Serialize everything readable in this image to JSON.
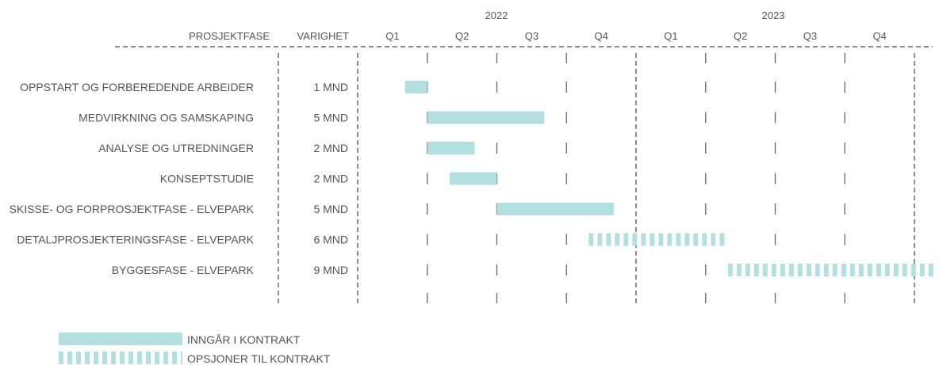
{
  "chart_data": {
    "type": "gantt",
    "headers": {
      "phase": "PROSJEKTFASE",
      "duration": "VARIGHET"
    },
    "years": [
      {
        "label": "2022",
        "start": 2022.0
      },
      {
        "label": "2023",
        "start": 2023.0
      }
    ],
    "quarters": [
      "Q1",
      "Q2",
      "Q3",
      "Q4",
      "Q1",
      "Q2",
      "Q3",
      "Q4"
    ],
    "x_range": [
      2022.0,
      2024.0
    ],
    "x_unit": "year",
    "tasks": [
      {
        "name": "OPPSTART OG FORBEREDENDE ARBEIDER",
        "duration": "1 MND",
        "start": 2022.17,
        "end": 2022.25,
        "type": "contract"
      },
      {
        "name": "MEDVIRKNING OG SAMSKAPING",
        "duration": "5 MND",
        "start": 2022.25,
        "end": 2022.67,
        "type": "contract"
      },
      {
        "name": "ANALYSE OG UTREDNINGER",
        "duration": "2 MND",
        "start": 2022.25,
        "end": 2022.42,
        "type": "contract"
      },
      {
        "name": "KONSEPTSTUDIE",
        "duration": "2 MND",
        "start": 2022.33,
        "end": 2022.5,
        "type": "contract"
      },
      {
        "name": "SKISSE- OG FORPROSJEKTFASE - ELVEPARK",
        "duration": "5 MND",
        "start": 2022.5,
        "end": 2022.92,
        "type": "contract"
      },
      {
        "name": "DETALJPROSJEKTERINGSFASE - ELVEPARK",
        "duration": "6 MND",
        "start": 2022.83,
        "end": 2023.33,
        "type": "option"
      },
      {
        "name": "BYGGESFASE - ELVEPARK",
        "duration": "9 MND",
        "start": 2023.33,
        "end": 2024.08,
        "type": "option"
      }
    ],
    "legend": [
      {
        "type": "contract",
        "label": "INNGÅR I KONTRAKT"
      },
      {
        "type": "option",
        "label": "OPSJONER TIL KONTRAKT"
      }
    ]
  },
  "colors": {
    "bar": "#b2dfe0",
    "line": "#666666",
    "text": "#555555"
  }
}
